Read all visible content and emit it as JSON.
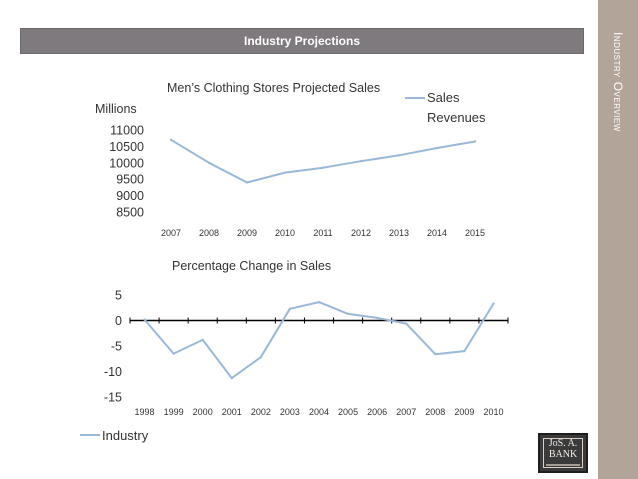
{
  "sidebar": {
    "title": "Industry Overview"
  },
  "header": {
    "title": "Industry Projections"
  },
  "logo": {
    "text": "JoS. A.\nBANK"
  },
  "colors": {
    "series_line": "#9ab8d8",
    "zero_line": "#000000",
    "axis": "#9a9a9a"
  },
  "chart_data": [
    {
      "type": "line",
      "title": "Men’s Clothing Stores Projected Sales",
      "ylabel": "Millions",
      "xlabel": "",
      "x": [
        "2007",
        "2008",
        "2009",
        "2010",
        "2011",
        "2012",
        "2013",
        "2014",
        "2015"
      ],
      "series": [
        {
          "name": "Sales Revenues",
          "values": [
            10700,
            10000,
            9400,
            9700,
            9850,
            10050,
            10230,
            10450,
            10650
          ]
        }
      ],
      "ylim": [
        8500,
        11000
      ],
      "yticks": [
        8500,
        9000,
        9500,
        10000,
        10500,
        11000
      ],
      "grid": false,
      "legend": {
        "position": "top-right",
        "label_lines": [
          "Sales",
          "Revenues"
        ]
      }
    },
    {
      "type": "line",
      "title": "Percentage Change in Sales",
      "ylabel": "",
      "xlabel": "",
      "x": [
        "1998",
        "1999",
        "2000",
        "2001",
        "2002",
        "2003",
        "2004",
        "2005",
        "2006",
        "2007",
        "2008",
        "2009",
        "2010"
      ],
      "series": [
        {
          "name": "Industry",
          "values": [
            0.2,
            -6.5,
            -3.8,
            -11.3,
            -7.2,
            2.3,
            3.6,
            1.3,
            0.5,
            -0.6,
            -6.6,
            -6.0,
            3.3
          ]
        }
      ],
      "ylim": [
        -15,
        5
      ],
      "yticks": [
        -15,
        -10,
        -5,
        0,
        5
      ],
      "grid": false,
      "legend": {
        "position": "bottom-left",
        "label_lines": [
          "Industry"
        ]
      }
    }
  ]
}
